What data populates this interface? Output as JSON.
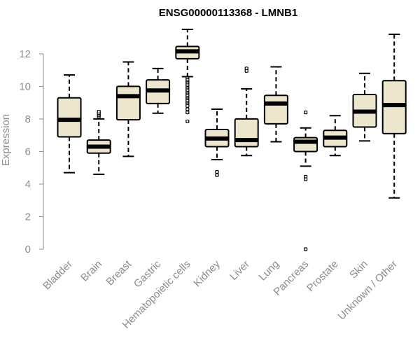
{
  "chart_data": {
    "type": "box",
    "title": "ENSG00000113368 - LMNB1",
    "xlabel": "",
    "ylabel": "Expression",
    "ylim": [
      0,
      13.5
    ],
    "yticks": [
      0,
      2,
      4,
      6,
      8,
      10,
      12
    ],
    "box_fill": "#ede6cf",
    "box_stroke": "#000000",
    "axis_color": "#8c8c8c",
    "categories": [
      "Bladder",
      "Brain",
      "Breast",
      "Gastric",
      "Hematopoietic cells",
      "Kidney",
      "Liver",
      "Lung",
      "Pancreas",
      "Prostate",
      "Skin",
      "Unknown / Other"
    ],
    "boxes": [
      {
        "whisker_low": 4.7,
        "q1": 6.9,
        "median": 7.95,
        "q3": 9.3,
        "whisker_high": 10.7,
        "outliers": []
      },
      {
        "whisker_low": 4.6,
        "q1": 5.9,
        "median": 6.3,
        "q3": 6.7,
        "whisker_high": 8.0,
        "outliers": [
          8.15,
          8.25,
          8.35,
          8.45
        ]
      },
      {
        "whisker_low": 5.7,
        "q1": 7.95,
        "median": 9.4,
        "q3": 10.0,
        "whisker_high": 11.5,
        "outliers": []
      },
      {
        "whisker_low": 8.35,
        "q1": 8.95,
        "median": 9.75,
        "q3": 10.4,
        "whisker_high": 11.1,
        "outliers": []
      },
      {
        "whisker_low": 10.6,
        "q1": 11.7,
        "median": 12.15,
        "q3": 12.45,
        "whisker_high": 13.5,
        "outliers": [
          10.5,
          10.4,
          10.3,
          10.2,
          10.1,
          10.0,
          9.9,
          9.8,
          9.7,
          9.6,
          9.5,
          9.4,
          9.3,
          9.2,
          9.1,
          9.0,
          8.9,
          8.8,
          8.6,
          8.4,
          7.85
        ]
      },
      {
        "whisker_low": 5.5,
        "q1": 6.3,
        "median": 6.8,
        "q3": 7.35,
        "whisker_high": 8.6,
        "outliers": [
          4.75,
          4.55
        ]
      },
      {
        "whisker_low": 5.75,
        "q1": 6.3,
        "median": 6.7,
        "q3": 8.0,
        "whisker_high": 9.85,
        "outliers": [
          11.1,
          10.95
        ]
      },
      {
        "whisker_low": 6.6,
        "q1": 7.7,
        "median": 8.95,
        "q3": 9.45,
        "whisker_high": 11.2,
        "outliers": []
      },
      {
        "whisker_low": 5.1,
        "q1": 6.0,
        "median": 6.6,
        "q3": 6.85,
        "whisker_high": 7.45,
        "outliers": [
          8.4,
          4.45,
          4.3,
          0.0
        ]
      },
      {
        "whisker_low": 5.75,
        "q1": 6.3,
        "median": 6.85,
        "q3": 7.3,
        "whisker_high": 8.2,
        "outliers": []
      },
      {
        "whisker_low": 6.65,
        "q1": 7.5,
        "median": 8.45,
        "q3": 9.5,
        "whisker_high": 10.8,
        "outliers": []
      },
      {
        "whisker_low": 3.15,
        "q1": 7.1,
        "median": 8.85,
        "q3": 10.35,
        "whisker_high": 13.2,
        "outliers": []
      }
    ]
  }
}
